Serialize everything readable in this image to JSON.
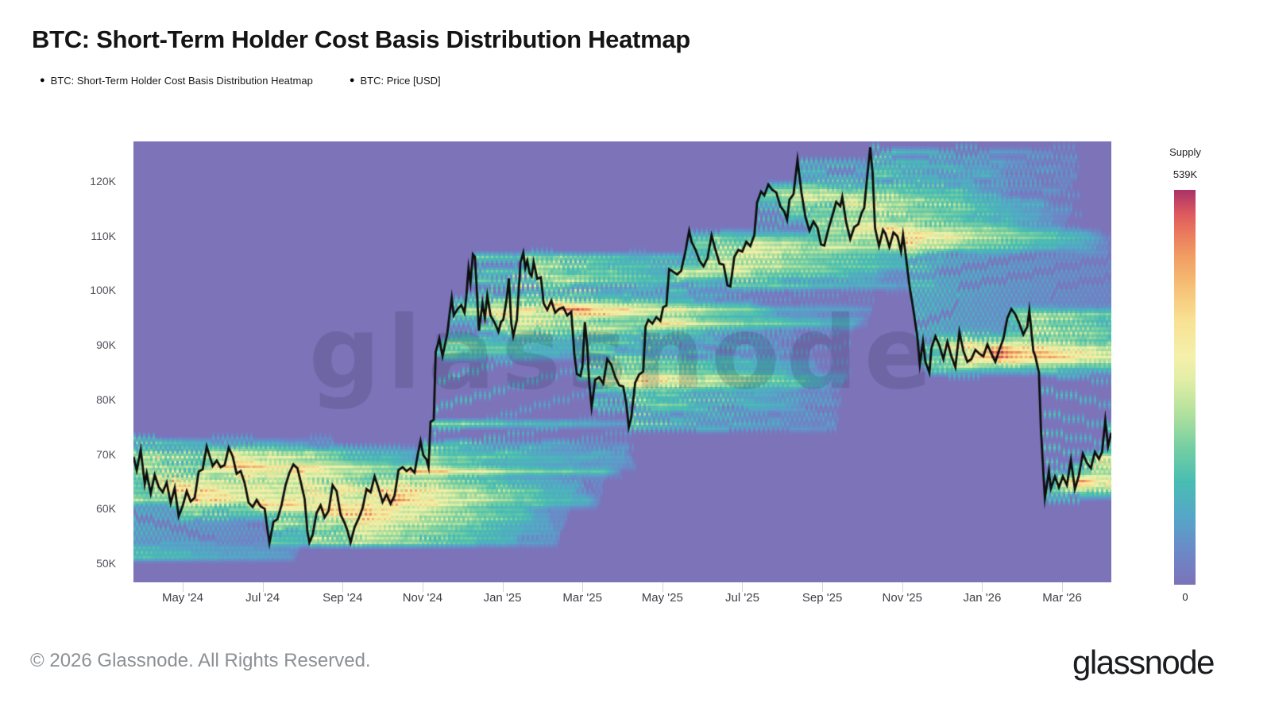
{
  "title": "BTC: Short-Term Holder Cost Basis Distribution Heatmap",
  "legend": {
    "items": [
      {
        "marker": "●",
        "label": "BTC: Short-Term Holder Cost Basis Distribution Heatmap"
      },
      {
        "marker": "●",
        "label": "BTC: Price [USD]"
      }
    ]
  },
  "colorbar": {
    "title": "Supply",
    "max_label": "539K",
    "min_label": "0"
  },
  "watermark": {
    "text": "glassnode"
  },
  "footer": {
    "copyright": "© 2026 Glassnode. All Rights Reserved.",
    "brand": "glassnode"
  },
  "chart_data": {
    "type": "heatmap",
    "title": "BTC: Short-Term Holder Cost Basis Distribution Heatmap",
    "x_axis": {
      "tick_labels": [
        "May '24",
        "Jul '24",
        "Sep '24",
        "Nov '24",
        "Jan '25",
        "Mar '25",
        "May '25",
        "Jul '25",
        "Sep '25",
        "Nov '25",
        "Jan '26",
        "Mar '26"
      ],
      "months_between_ticks": 2,
      "range_months_from_may24": [
        -1.23,
        23.23
      ]
    },
    "y_axis": {
      "tick_labels": [
        "50K",
        "60K",
        "70K",
        "80K",
        "90K",
        "100K",
        "110K",
        "120K"
      ],
      "tick_values_k": [
        50,
        60,
        70,
        80,
        90,
        100,
        110,
        120
      ],
      "unit": "USD",
      "range_k": [
        46.6,
        127.3
      ]
    },
    "supply_scale": {
      "min": 0,
      "max_label": "539K",
      "background_zero_color": "#7c73b9",
      "colormap_stops": [
        [
          0.0,
          "#7c73b9"
        ],
        [
          0.1,
          "#6d87c7"
        ],
        [
          0.2,
          "#55a6c8"
        ],
        [
          0.3,
          "#49bdb2"
        ],
        [
          0.4,
          "#77cfa2"
        ],
        [
          0.5,
          "#b5e29d"
        ],
        [
          0.58,
          "#e3eea6"
        ],
        [
          0.65,
          "#f5f0aa"
        ],
        [
          0.72,
          "#f8e193"
        ],
        [
          0.79,
          "#f6c277"
        ],
        [
          0.86,
          "#f19e63"
        ],
        [
          0.91,
          "#ea7a5e"
        ],
        [
          0.95,
          "#de585f"
        ],
        [
          1.0,
          "#a93267"
        ]
      ]
    },
    "heatmap_model": {
      "description": "Short-term holder cost basis density: supply bought within trailing window, binned by purchase price",
      "window_days": 158,
      "decay_days": 90,
      "price_bin_k": 0.872
    },
    "price_line": {
      "name": "BTC: Price [USD]",
      "color": "#0d0d0d",
      "unit": "thousand USD",
      "x_unit": "months since 2024-05-01",
      "points": [
        [
          -2.5,
          52
        ],
        [
          -2.35,
          51.5
        ],
        [
          -2.2,
          54
        ],
        [
          -2.05,
          62
        ],
        [
          -1.9,
          61.5
        ],
        [
          -1.75,
          68.5
        ],
        [
          -1.6,
          62.5
        ],
        [
          -1.5,
          68
        ],
        [
          -1.4,
          73
        ],
        [
          -1.3,
          69.5
        ],
        [
          -1.23,
          69.5
        ],
        [
          -1.15,
          67
        ],
        [
          -1.05,
          70.8
        ],
        [
          -0.95,
          64.5
        ],
        [
          -0.9,
          66.5
        ],
        [
          -0.8,
          62.8
        ],
        [
          -0.7,
          66.2
        ],
        [
          -0.6,
          64
        ],
        [
          -0.5,
          63
        ],
        [
          -0.4,
          64.8
        ],
        [
          -0.3,
          61
        ],
        [
          -0.2,
          63.8
        ],
        [
          -0.1,
          58.6
        ],
        [
          0,
          60.5
        ],
        [
          0.1,
          63.2
        ],
        [
          0.2,
          61.3
        ],
        [
          0.3,
          62
        ],
        [
          0.4,
          66.8
        ],
        [
          0.5,
          67.2
        ],
        [
          0.6,
          71.4
        ],
        [
          0.7,
          69
        ],
        [
          0.75,
          67.8
        ],
        [
          0.85,
          68.8
        ],
        [
          0.95,
          67.6
        ],
        [
          1.05,
          68
        ],
        [
          1.15,
          71.2
        ],
        [
          1.25,
          69.6
        ],
        [
          1.35,
          66.4
        ],
        [
          1.45,
          66.9
        ],
        [
          1.55,
          64.7
        ],
        [
          1.65,
          61.1
        ],
        [
          1.75,
          60.3
        ],
        [
          1.85,
          61.6
        ],
        [
          1.95,
          60.4
        ],
        [
          2.05,
          60
        ],
        [
          2.12,
          56.2
        ],
        [
          2.17,
          53.7
        ],
        [
          2.27,
          57.6
        ],
        [
          2.37,
          58.1
        ],
        [
          2.47,
          60.6
        ],
        [
          2.57,
          64.2
        ],
        [
          2.67,
          66.6
        ],
        [
          2.77,
          68.1
        ],
        [
          2.87,
          67.4
        ],
        [
          2.97,
          64.4
        ],
        [
          3.05,
          61.8
        ],
        [
          3.12,
          55.8
        ],
        [
          3.17,
          53.8
        ],
        [
          3.25,
          55.2
        ],
        [
          3.35,
          59.2
        ],
        [
          3.45,
          60.6
        ],
        [
          3.55,
          58.4
        ],
        [
          3.65,
          59.6
        ],
        [
          3.75,
          64.3
        ],
        [
          3.85,
          63.2
        ],
        [
          3.95,
          58.9
        ],
        [
          4.05,
          57.4
        ],
        [
          4.12,
          56
        ],
        [
          4.2,
          53.8
        ],
        [
          4.3,
          56.6
        ],
        [
          4.4,
          58.2
        ],
        [
          4.5,
          60.1
        ],
        [
          4.6,
          63.6
        ],
        [
          4.7,
          63
        ],
        [
          4.8,
          65.9
        ],
        [
          4.9,
          63.7
        ],
        [
          5,
          61.2
        ],
        [
          5.1,
          62.6
        ],
        [
          5.2,
          60.9
        ],
        [
          5.3,
          62.4
        ],
        [
          5.4,
          67.1
        ],
        [
          5.5,
          67.6
        ],
        [
          5.6,
          66.9
        ],
        [
          5.7,
          67.4
        ],
        [
          5.8,
          66.6
        ],
        [
          5.88,
          69.9
        ],
        [
          5.95,
          72.4
        ],
        [
          6.02,
          69.8
        ],
        [
          6.1,
          69
        ],
        [
          6.15,
          67.6
        ],
        [
          6.2,
          75.9
        ],
        [
          6.28,
          76.3
        ],
        [
          6.33,
          88.7
        ],
        [
          6.42,
          91.2
        ],
        [
          6.5,
          87.9
        ],
        [
          6.57,
          90.4
        ],
        [
          6.62,
          92.1
        ],
        [
          6.68,
          95.9
        ],
        [
          6.73,
          98.6
        ],
        [
          6.78,
          95.4
        ],
        [
          6.88,
          96.6
        ],
        [
          6.97,
          97.3
        ],
        [
          7.05,
          95.9
        ],
        [
          7.1,
          99.2
        ],
        [
          7.15,
          104.1
        ],
        [
          7.2,
          101.4
        ],
        [
          7.26,
          106.6
        ],
        [
          7.31,
          106.1
        ],
        [
          7.36,
          99.8
        ],
        [
          7.41,
          92.6
        ],
        [
          7.5,
          97.6
        ],
        [
          7.56,
          94.9
        ],
        [
          7.62,
          99.1
        ],
        [
          7.7,
          95.4
        ],
        [
          7.8,
          94.1
        ],
        [
          7.9,
          92.4
        ],
        [
          7.96,
          94.2
        ],
        [
          8.02,
          94.6
        ],
        [
          8.1,
          98.2
        ],
        [
          8.16,
          102.2
        ],
        [
          8.22,
          93.9
        ],
        [
          8.27,
          91.6
        ],
        [
          8.36,
          94.6
        ],
        [
          8.45,
          105.1
        ],
        [
          8.52,
          106.9
        ],
        [
          8.57,
          104.1
        ],
        [
          8.62,
          105.4
        ],
        [
          8.68,
          103.1
        ],
        [
          8.73,
          102.6
        ],
        [
          8.78,
          105.2
        ],
        [
          8.87,
          102.1
        ],
        [
          8.96,
          102.4
        ],
        [
          9.03,
          97.6
        ],
        [
          9.12,
          96.4
        ],
        [
          9.22,
          98.1
        ],
        [
          9.32,
          95.9
        ],
        [
          9.42,
          96.6
        ],
        [
          9.52,
          96.9
        ],
        [
          9.62,
          95.4
        ],
        [
          9.72,
          96.1
        ],
        [
          9.8,
          88.1
        ],
        [
          9.86,
          84.7
        ],
        [
          9.95,
          84.3
        ],
        [
          10,
          86.1
        ],
        [
          10.06,
          94.2
        ],
        [
          10.12,
          89.9
        ],
        [
          10.17,
          83.1
        ],
        [
          10.23,
          78.6
        ],
        [
          10.32,
          83.6
        ],
        [
          10.42,
          84.1
        ],
        [
          10.52,
          82.9
        ],
        [
          10.62,
          87.4
        ],
        [
          10.72,
          86.4
        ],
        [
          10.82,
          84.1
        ],
        [
          10.92,
          82.6
        ],
        [
          11.02,
          82.4
        ],
        [
          11.1,
          79.1
        ],
        [
          11.16,
          74.9
        ],
        [
          11.22,
          76.6
        ],
        [
          11.32,
          83.1
        ],
        [
          11.42,
          84.6
        ],
        [
          11.52,
          85.1
        ],
        [
          11.58,
          93.4
        ],
        [
          11.65,
          94.6
        ],
        [
          11.75,
          93.9
        ],
        [
          11.85,
          95.1
        ],
        [
          11.95,
          94.4
        ],
        [
          12.02,
          96.9
        ],
        [
          12.1,
          97.2
        ],
        [
          12.17,
          103.9
        ],
        [
          12.27,
          103.4
        ],
        [
          12.37,
          102.9
        ],
        [
          12.47,
          103.6
        ],
        [
          12.57,
          106.9
        ],
        [
          12.67,
          110.9
        ],
        [
          12.73,
          108.9
        ],
        [
          12.83,
          107.4
        ],
        [
          12.93,
          105.4
        ],
        [
          13.03,
          104.4
        ],
        [
          13.13,
          105.9
        ],
        [
          13.23,
          110.1
        ],
        [
          13.33,
          107.4
        ],
        [
          13.43,
          104.9
        ],
        [
          13.53,
          104.7
        ],
        [
          13.63,
          100.9
        ],
        [
          13.7,
          100.7
        ],
        [
          13.8,
          106.1
        ],
        [
          13.9,
          107.4
        ],
        [
          14,
          107.1
        ],
        [
          14.1,
          108.9
        ],
        [
          14.2,
          108.1
        ],
        [
          14.3,
          110.1
        ],
        [
          14.37,
          116.1
        ],
        [
          14.47,
          118.1
        ],
        [
          14.55,
          117.4
        ],
        [
          14.65,
          119.4
        ],
        [
          14.75,
          118.4
        ],
        [
          14.85,
          117.9
        ],
        [
          14.95,
          115.4
        ],
        [
          15.05,
          114.4
        ],
        [
          15.12,
          112.9
        ],
        [
          15.18,
          116.6
        ],
        [
          15.28,
          117.6
        ],
        [
          15.38,
          123.9
        ],
        [
          15.48,
          117.9
        ],
        [
          15.58,
          113.4
        ],
        [
          15.68,
          110.9
        ],
        [
          15.78,
          112.6
        ],
        [
          15.88,
          111.4
        ],
        [
          15.97,
          108.4
        ],
        [
          16.05,
          108.2
        ],
        [
          16.15,
          111.1
        ],
        [
          16.25,
          113.6
        ],
        [
          16.35,
          116.2
        ],
        [
          16.45,
          115.4
        ],
        [
          16.5,
          117.1
        ],
        [
          16.6,
          112.4
        ],
        [
          16.7,
          109.4
        ],
        [
          16.8,
          111.6
        ],
        [
          16.9,
          112.1
        ],
        [
          16.98,
          114.1
        ],
        [
          17.05,
          115.1
        ],
        [
          17.12,
          120.6
        ],
        [
          17.2,
          126.2
        ],
        [
          17.26,
          121.4
        ],
        [
          17.32,
          111.4
        ],
        [
          17.42,
          108.1
        ],
        [
          17.52,
          111.1
        ],
        [
          17.58,
          110.4
        ],
        [
          17.68,
          107.9
        ],
        [
          17.78,
          110.6
        ],
        [
          17.88,
          109.9
        ],
        [
          17.97,
          107.1
        ],
        [
          18.02,
          110.2
        ],
        [
          18.08,
          106.9
        ],
        [
          18.18,
          100.9
        ],
        [
          18.28,
          96.4
        ],
        [
          18.38,
          91.4
        ],
        [
          18.44,
          86.4
        ],
        [
          18.52,
          90.6
        ],
        [
          18.58,
          86.9
        ],
        [
          18.68,
          84.9
        ],
        [
          18.73,
          89.4
        ],
        [
          18.83,
          91.6
        ],
        [
          18.93,
          89.9
        ],
        [
          19.03,
          87.4
        ],
        [
          19.13,
          90.6
        ],
        [
          19.23,
          87.9
        ],
        [
          19.33,
          85.9
        ],
        [
          19.43,
          92.4
        ],
        [
          19.53,
          88.9
        ],
        [
          19.63,
          86.9
        ],
        [
          19.73,
          87.4
        ],
        [
          19.83,
          89.1
        ],
        [
          19.93,
          88.4
        ],
        [
          20.03,
          87.9
        ],
        [
          20.13,
          90.1
        ],
        [
          20.23,
          88.4
        ],
        [
          20.33,
          86.9
        ],
        [
          20.43,
          89.1
        ],
        [
          20.53,
          91.1
        ],
        [
          20.63,
          94.9
        ],
        [
          20.73,
          96.6
        ],
        [
          20.83,
          95.6
        ],
        [
          20.93,
          93.9
        ],
        [
          21.03,
          91.9
        ],
        [
          21.13,
          93.4
        ],
        [
          21.18,
          96.3
        ],
        [
          21.28,
          88.9
        ],
        [
          21.33,
          87.9
        ],
        [
          21.42,
          84.9
        ],
        [
          21.47,
          74.6
        ],
        [
          21.52,
          67.9
        ],
        [
          21.57,
          61.9
        ],
        [
          21.62,
          64.4
        ],
        [
          21.67,
          66.9
        ],
        [
          21.72,
          63.7
        ],
        [
          21.82,
          65.9
        ],
        [
          21.92,
          63.9
        ],
        [
          22.02,
          65.9
        ],
        [
          22.12,
          64.3
        ],
        [
          22.22,
          68.9
        ],
        [
          22.32,
          63.6
        ],
        [
          22.42,
          66.1
        ],
        [
          22.52,
          70.1
        ],
        [
          22.62,
          68.4
        ],
        [
          22.72,
          67.4
        ],
        [
          22.82,
          70.4
        ],
        [
          22.92,
          69.1
        ],
        [
          23,
          70.4
        ],
        [
          23.08,
          76.2
        ],
        [
          23.15,
          71.4
        ],
        [
          23.23,
          73.9
        ]
      ]
    }
  }
}
